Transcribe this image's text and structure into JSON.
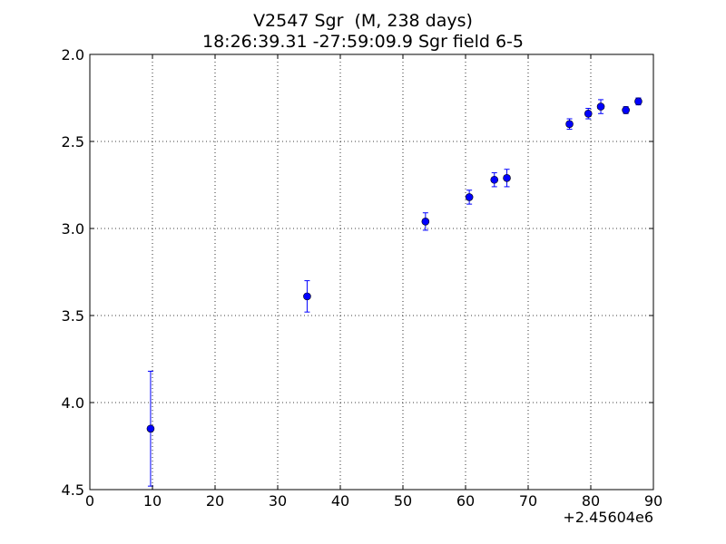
{
  "chart_data": {
    "type": "scatter",
    "title_line1": "V2547 Sgr  (M, 238 days)",
    "title_line2": "18:26:39.31 -27:59:09.9 Sgr field 6-5",
    "xlabel": "",
    "ylabel": "",
    "x_offset_label": "+2.45604e6",
    "xlim": [
      0,
      90
    ],
    "ylim": [
      4.5,
      2.0
    ],
    "y_inverted": true,
    "x_ticks": [
      0,
      10,
      20,
      30,
      40,
      50,
      60,
      70,
      80,
      90
    ],
    "x_tick_labels": [
      "0",
      "10",
      "20",
      "30",
      "40",
      "50",
      "60",
      "70",
      "80",
      "90"
    ],
    "y_ticks": [
      2.0,
      2.5,
      3.0,
      3.5,
      4.0,
      4.5
    ],
    "y_tick_labels": [
      "2.0",
      "2.5",
      "3.0",
      "3.5",
      "4.0",
      "4.5"
    ],
    "grid": true,
    "series": [
      {
        "marker_color": "#0000ff",
        "x": [
          9.7,
          34.7,
          53.6,
          60.6,
          64.6,
          66.6,
          76.6,
          79.6,
          81.6,
          85.6,
          87.6
        ],
        "y": [
          4.15,
          3.39,
          2.96,
          2.82,
          2.72,
          2.71,
          2.4,
          2.34,
          2.3,
          2.32,
          2.27
        ],
        "yerr": [
          0.33,
          0.09,
          0.05,
          0.04,
          0.04,
          0.05,
          0.03,
          0.03,
          0.04,
          0.02,
          0.02
        ]
      }
    ]
  }
}
